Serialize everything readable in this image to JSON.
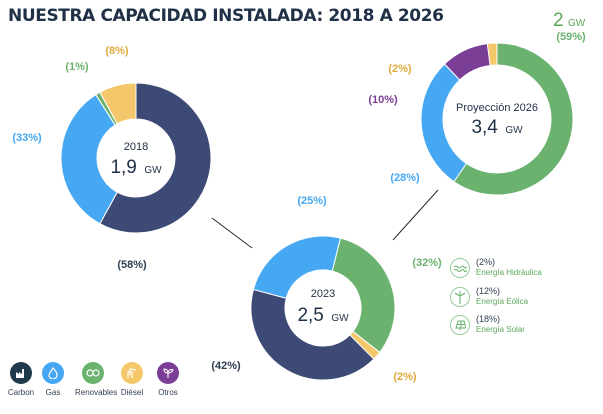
{
  "title": "NUESTRA CAPACIDAD INSTALADA: 2018 A 2026",
  "colors": {
    "carbon": "#3d4a75",
    "gas": "#46a8f3",
    "renovables": "#6ab26d",
    "diesel": "#f4c86a",
    "otros": "#7b3e96",
    "connector": "#2b2b2b",
    "label_text": "#2f3e52"
  },
  "chart_data": [
    {
      "type": "pie",
      "year": "2018",
      "capacity_value": "1,9",
      "capacity_unit": "GW",
      "categories": [
        "Carbon",
        "Gas",
        "Renovables",
        "Diésel"
      ],
      "values": [
        58,
        33,
        1,
        8
      ],
      "labels": [
        "(58%)",
        "(33%)",
        "(1%)",
        "(8%)"
      ]
    },
    {
      "type": "pie",
      "year": "2023",
      "capacity_value": "2,5",
      "capacity_unit": "GW",
      "categories": [
        "Renovables",
        "Diésel",
        "Carbon",
        "Gas"
      ],
      "values": [
        32,
        2,
        42,
        25
      ],
      "labels": [
        "(32%)",
        "(2%)",
        "(42%)",
        "(25%)"
      ]
    },
    {
      "type": "pie",
      "year": "Proyección 2026",
      "capacity_value": "3,4",
      "capacity_unit": "GW",
      "categories": [
        "Renovables",
        "Gas",
        "Otros",
        "Diésel"
      ],
      "values": [
        59,
        28,
        10,
        2
      ],
      "labels": [
        "(59%)",
        "(28%)",
        "(10%)",
        "(2%)"
      ],
      "renovables_capacity": {
        "value": "2",
        "unit": "GW"
      }
    }
  ],
  "renewables_breakdown": [
    {
      "pct": "(2%)",
      "name": "Energía Hidráulica",
      "icon": "water-wave-icon"
    },
    {
      "pct": "(12%)",
      "name": "Energía Eólica",
      "icon": "wind-turbine-icon"
    },
    {
      "pct": "(18%)",
      "name": "Energía Solar",
      "icon": "solar-panel-icon"
    }
  ],
  "legend": [
    {
      "label": "Carbon",
      "icon": "factory-icon",
      "color": "#1f3a4a"
    },
    {
      "label": "Gas",
      "icon": "flame-icon",
      "color": "#46a8f3"
    },
    {
      "label": "Renovables",
      "icon": "recycle-icon",
      "color": "#6ab26d"
    },
    {
      "label": "Diésel",
      "icon": "oil-pump-icon",
      "color": "#f4c86a"
    },
    {
      "label": "Otros",
      "icon": "plant-icon",
      "color": "#7b3e96"
    }
  ]
}
